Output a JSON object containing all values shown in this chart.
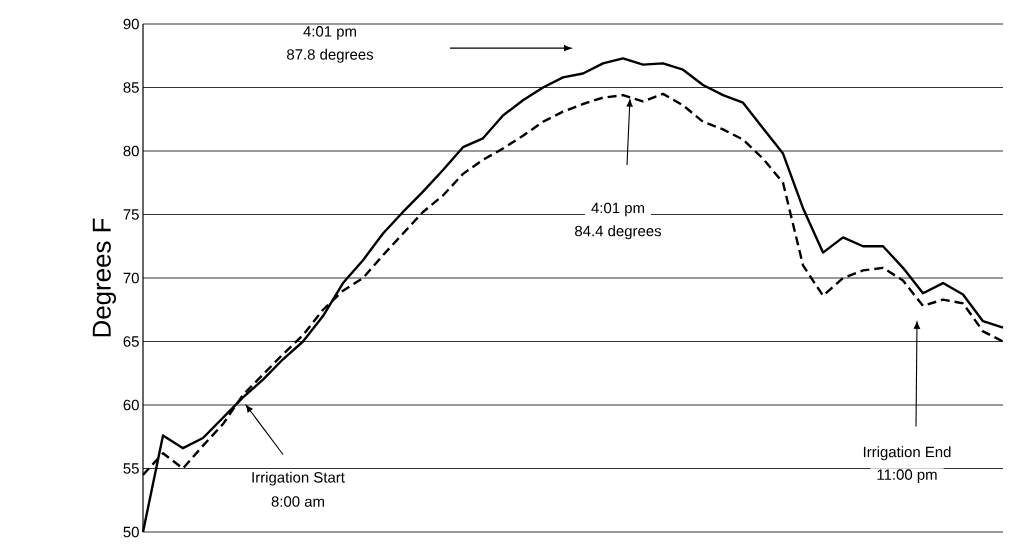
{
  "chart_data": {
    "type": "line",
    "ylabel": "Degrees F",
    "categories": [
      null,
      null,
      null,
      null,
      null,
      null,
      null,
      null,
      null,
      null,
      null,
      null,
      null,
      null,
      null,
      null,
      null,
      null,
      null,
      null,
      null,
      null,
      null,
      null,
      null,
      null,
      null,
      null,
      null,
      null,
      null,
      null,
      null,
      null,
      null,
      null,
      null,
      null,
      null,
      null,
      null,
      null,
      null,
      null
    ],
    "ylim": [
      50,
      90
    ],
    "yticks": [
      50,
      55,
      60,
      65,
      70,
      75,
      80,
      85,
      90
    ],
    "grid": "y",
    "marker": "none",
    "tick_labels": "y",
    "series": [
      {
        "color": "#000000",
        "line_style": "solid",
        "values": [
          50,
          57.6,
          56.6,
          57.4,
          59.0,
          60.6,
          62.0,
          63.6,
          65.0,
          67.0,
          69.6,
          71.4,
          73.5,
          75.2,
          76.8,
          78.5,
          80.3,
          81.0,
          82.8,
          84.0,
          85.0,
          85.8,
          86.1,
          86.9,
          87.3,
          86.8,
          86.9,
          86.4,
          85.2,
          84.4,
          83.8,
          81.8,
          79.8,
          75.5,
          72.0,
          73.2,
          72.5,
          72.5,
          70.8,
          68.8,
          69.6,
          68.7,
          66.6,
          66.1
        ]
      },
      {
        "color": "#000000",
        "line_style": "dashed",
        "values": [
          54.5,
          56.2,
          55.0,
          56.8,
          58.5,
          60.8,
          62.4,
          64.0,
          65.5,
          67.5,
          69.0,
          70.0,
          71.8,
          73.5,
          75.2,
          76.5,
          78.2,
          79.3,
          80.2,
          81.2,
          82.3,
          83.1,
          83.7,
          84.2,
          84.4,
          83.9,
          84.5,
          83.6,
          82.3,
          81.7,
          80.9,
          79.4,
          77.5,
          71.0,
          68.6,
          70.0,
          70.6,
          70.8,
          69.8,
          67.8,
          68.3,
          68.0,
          65.8,
          65.0
        ]
      }
    ],
    "annotations": [
      "4:01 pm",
      "87.8 degrees",
      "4:01 pm",
      "84.4 degrees",
      "Irrigation Start",
      "8:00 am",
      "Irrigation End",
      "11:00 pm"
    ]
  }
}
